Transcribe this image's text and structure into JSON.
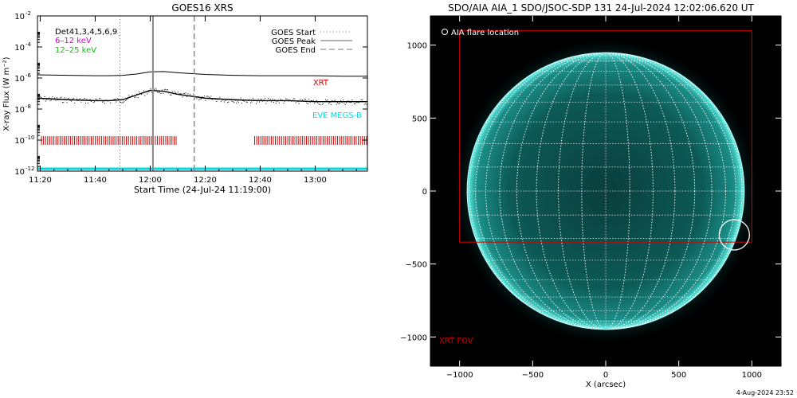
{
  "chart_data": [
    {
      "type": "line",
      "title": "GOES16 XRS",
      "xlabel": "Start Time (24-Jul-24 11:19:00)",
      "ylabel": "X-ray Flux (W m⁻²)",
      "y_scale": "log",
      "ylim": [
        1e-12,
        0.01
      ],
      "x_tick_labels": [
        "11:20",
        "11:40",
        "12:00",
        "12:20",
        "12:40",
        "13:00"
      ],
      "y_tick_labels": [
        {
          "base": "10",
          "exp": "-2"
        },
        {
          "base": "10",
          "exp": "-4"
        },
        {
          "base": "10",
          "exp": "-6"
        },
        {
          "base": "10",
          "exp": "-8"
        },
        {
          "base": "10",
          "exp": "-10"
        },
        {
          "base": "10",
          "exp": "-12"
        }
      ],
      "channel_labels": [
        {
          "text": "Det41,3,4,5,6,9",
          "color": "#000000"
        },
        {
          "text": "6–12 keV",
          "color": "#d400d4"
        },
        {
          "text": "12–25 keV",
          "color": "#00c800"
        }
      ],
      "legend": [
        {
          "label": "GOES Start",
          "style": "dotted"
        },
        {
          "label": "GOES Peak",
          "style": "solid"
        },
        {
          "label": "GOES End",
          "style": "dashed"
        }
      ],
      "annotations": [
        {
          "text": "XRT",
          "color": "#d40000"
        },
        {
          "text": "EVE MEGS-B",
          "color": "#00d8e8"
        }
      ],
      "event_times": {
        "start": "11:49",
        "peak": "12:01",
        "end": "12:16"
      },
      "series": [
        {
          "name": "GOES long channel",
          "x": [
            "11:19",
            "11:30",
            "11:40",
            "11:45",
            "11:50",
            "11:55",
            "12:00",
            "12:05",
            "12:10",
            "12:20",
            "12:30",
            "12:40",
            "12:50",
            "13:00",
            "13:10",
            "13:19"
          ],
          "y": [
            1.6e-06,
            1.5e-06,
            1.4e-06,
            1.4e-06,
            1.5e-06,
            1.8e-06,
            2.5e-06,
            2.6e-06,
            2.2e-06,
            1.7e-06,
            1.5e-06,
            1.4e-06,
            1.4e-06,
            1.4e-06,
            1.3e-06,
            1.3e-06
          ]
        },
        {
          "name": "GOES short channel",
          "x": [
            "11:19",
            "11:30",
            "11:40",
            "11:45",
            "11:50",
            "11:55",
            "12:00",
            "12:05",
            "12:10",
            "12:20",
            "12:30",
            "12:40",
            "12:50",
            "13:00",
            "13:10",
            "13:19"
          ],
          "y": [
            5e-08,
            4e-08,
            3.5e-08,
            3.5e-08,
            4e-08,
            8e-08,
            1.6e-07,
            1.4e-07,
            9e-08,
            5e-08,
            4e-08,
            3.5e-08,
            3.5e-08,
            3e-08,
            3e-08,
            3e-08
          ]
        },
        {
          "name": "XRT",
          "coverage": [
            [
              "11:19",
              "12:10"
            ],
            [
              "12:38",
              "13:19"
            ]
          ],
          "level": 1e-10
        },
        {
          "name": "EVE MEGS-B",
          "level": 1e-12
        }
      ]
    },
    {
      "type": "image",
      "title": "SDO/AIA AIA_1 SDO/JSOC-SDP 131 24-Jul-2024 12:02:06.620 UT",
      "xlabel": "X (arcsec)",
      "ylabel": "",
      "xlim": [
        -1200,
        1200
      ],
      "ylim": [
        -1200,
        1200
      ],
      "x_tick_labels": [
        "−1000",
        "−500",
        "0",
        "500",
        "1000"
      ],
      "y_tick_labels": [
        "1000",
        "500",
        "0",
        "−500",
        "−1000"
      ],
      "solar_radius_arcsec": 948,
      "flare_location": {
        "x": 880,
        "y": -300
      },
      "legend_label": "AIA flare location",
      "fov_label": "XRT FOV",
      "xrt_fov": {
        "x_min": -1000,
        "x_max": 1000,
        "y_min": -350,
        "y_max": 1100
      },
      "colors": {
        "disk": "#0b5f5c",
        "limb": "#4fe9e0",
        "fov": "#d40000",
        "background": "#000000"
      }
    }
  ],
  "footer": {
    "timestamp": "4-Aug-2024 23:52"
  }
}
